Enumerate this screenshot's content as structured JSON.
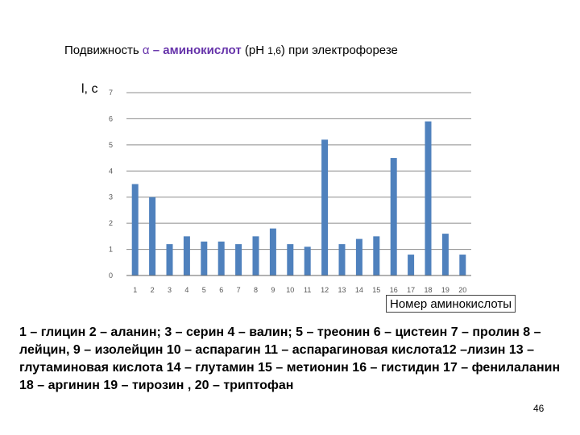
{
  "title": {
    "part1": "Подвижность ",
    "alpha": "α",
    "part2": " – аминокислот",
    "part3": " (рН ",
    "ph_value": "1,6",
    "part4": ") при электрофорезе"
  },
  "legend_text": "1 – глицин 2 – аланин; 3 – серин 4 – валин; 5 – треонин  6 – цистеин 7 – пролин 8 – лейцин, 9 – изолейцин 10 – аспарагин 11 – аспарагиновая кислота12 –лизин 13 – глутаминовая кислота 14 – глутамин 15 – метионин 16 – гистидин 17 – фенилаланин 18 – аргинин 19 – тирозин , 20 – триптофан",
  "page_number": "46",
  "colors": {
    "bar": "#4f81bd",
    "grid": "#8c8c8c",
    "title_accent": "#6633aa"
  },
  "chart_data": {
    "type": "bar",
    "title": "Подвижность α – аминокислот (рН 1,6) при электрофорезе",
    "ylabel": "l, c",
    "xlabel": "Номер аминокислоты",
    "ylim": [
      0,
      7
    ],
    "yticks": [
      "0",
      "1",
      "2",
      "3",
      "4",
      "5",
      "6",
      "7"
    ],
    "grid": true,
    "categories": [
      "1",
      "2",
      "3",
      "4",
      "5",
      "6",
      "7",
      "8",
      "9",
      "10",
      "11",
      "12",
      "13",
      "14",
      "15",
      "16",
      "17",
      "18",
      "19",
      "20"
    ],
    "values": [
      3.5,
      3.0,
      1.2,
      1.5,
      1.3,
      1.3,
      1.2,
      1.5,
      1.8,
      1.2,
      1.1,
      5.2,
      1.2,
      1.4,
      1.5,
      4.5,
      0.8,
      5.9,
      1.6,
      0.8
    ]
  }
}
